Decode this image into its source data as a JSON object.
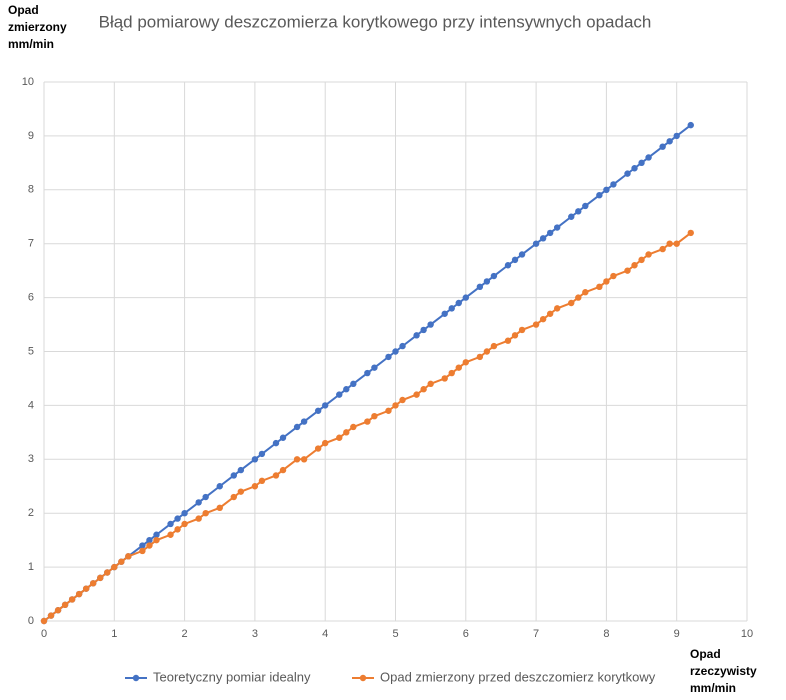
{
  "chart_data": {
    "type": "line",
    "title": "Błąd pomiarowy deszczomierza korytkowego przy intensywnych opadach",
    "ylabel": "Opad zmierzony mm/min",
    "xlabel": "Opad rzeczywisty mm/min",
    "x": [
      0,
      0.1,
      0.2,
      0.3,
      0.4,
      0.5,
      0.6,
      0.7,
      0.8,
      0.9,
      1.0,
      1.1,
      1.2,
      1.4,
      1.5,
      1.6,
      1.8,
      1.9,
      2.0,
      2.2,
      2.3,
      2.5,
      2.7,
      2.8,
      3.0,
      3.1,
      3.3,
      3.4,
      3.6,
      3.7,
      3.9,
      4.0,
      4.2,
      4.3,
      4.4,
      4.6,
      4.7,
      4.9,
      5.0,
      5.1,
      5.3,
      5.4,
      5.5,
      5.7,
      5.8,
      5.9,
      6.0,
      6.2,
      6.3,
      6.4,
      6.6,
      6.7,
      6.8,
      7.0,
      7.1,
      7.2,
      7.3,
      7.5,
      7.6,
      7.7,
      7.9,
      8.0,
      8.1,
      8.3,
      8.4,
      8.5,
      8.6,
      8.8,
      8.9,
      9.0,
      9.2
    ],
    "series": [
      {
        "name": "Teoretyczny pomiar idealny",
        "color": "#4472c4",
        "values": [
          0,
          0.1,
          0.2,
          0.3,
          0.4,
          0.5,
          0.6,
          0.7,
          0.8,
          0.9,
          1.0,
          1.1,
          1.2,
          1.4,
          1.5,
          1.6,
          1.8,
          1.9,
          2.0,
          2.2,
          2.3,
          2.5,
          2.7,
          2.8,
          3.0,
          3.1,
          3.3,
          3.4,
          3.6,
          3.7,
          3.9,
          4.0,
          4.2,
          4.3,
          4.4,
          4.6,
          4.7,
          4.9,
          5.0,
          5.1,
          5.3,
          5.4,
          5.5,
          5.7,
          5.8,
          5.9,
          6.0,
          6.2,
          6.3,
          6.4,
          6.6,
          6.7,
          6.8,
          7.0,
          7.1,
          7.2,
          7.3,
          7.5,
          7.6,
          7.7,
          7.9,
          8.0,
          8.1,
          8.3,
          8.4,
          8.5,
          8.6,
          8.8,
          8.9,
          9.0,
          9.2
        ]
      },
      {
        "name": "Opad zmierzony przed deszczomierz korytkowy",
        "color": "#ed7d31",
        "values": [
          0,
          0.1,
          0.2,
          0.3,
          0.4,
          0.5,
          0.6,
          0.7,
          0.8,
          0.9,
          1.0,
          1.1,
          1.2,
          1.3,
          1.4,
          1.5,
          1.6,
          1.7,
          1.8,
          1.9,
          2.0,
          2.1,
          2.3,
          2.4,
          2.5,
          2.6,
          2.7,
          2.8,
          3.0,
          3.0,
          3.2,
          3.3,
          3.4,
          3.5,
          3.6,
          3.7,
          3.8,
          3.9,
          4.0,
          4.1,
          4.2,
          4.3,
          4.4,
          4.5,
          4.6,
          4.7,
          4.8,
          4.9,
          5.0,
          5.1,
          5.2,
          5.3,
          5.4,
          5.5,
          5.6,
          5.7,
          5.8,
          5.9,
          6.0,
          6.1,
          6.2,
          6.3,
          6.4,
          6.5,
          6.6,
          6.7,
          6.8,
          6.9,
          7.0,
          7.0,
          7.2
        ]
      }
    ],
    "xlim": [
      0,
      10
    ],
    "ylim": [
      0,
      10
    ],
    "xticks": [
      0,
      1,
      2,
      3,
      4,
      5,
      6,
      7,
      8,
      9,
      10
    ],
    "yticks": [
      0,
      1,
      2,
      3,
      4,
      5,
      6,
      7,
      8,
      9,
      10
    ],
    "grid": true
  }
}
